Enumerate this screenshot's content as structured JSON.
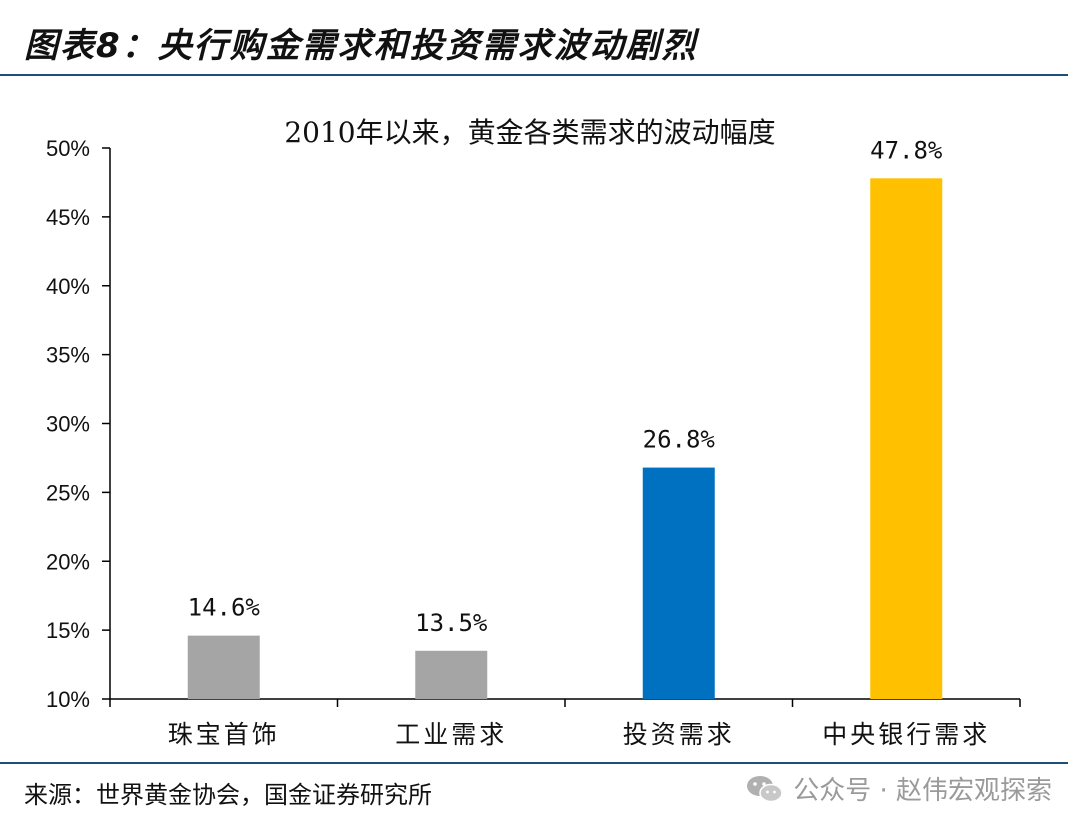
{
  "figure_title": "图表8：央行购金需求和投资需求波动剧烈",
  "source": "来源：世界黄金协会，国金证券研究所",
  "watermark": {
    "text": "公众号 · 赵伟宏观探索",
    "icon": "wechat-icon"
  },
  "colors": {
    "rule": "#1f4e79",
    "gray_bar": "#a5a5a5",
    "blue_bar": "#0070c0",
    "gold_bar": "#ffc000",
    "axis": "#000000"
  },
  "chart_data": {
    "type": "bar",
    "title": "2010年以来，黄金各类需求的波动幅度",
    "xlabel": "",
    "ylabel": "",
    "categories": [
      "珠宝首饰",
      "工业需求",
      "投资需求",
      "中央银行需求"
    ],
    "values": [
      14.6,
      13.5,
      26.8,
      47.8
    ],
    "data_labels": [
      "14.6%",
      "13.5%",
      "26.8%",
      "47.8%"
    ],
    "bar_colors": [
      "#a5a5a5",
      "#a5a5a5",
      "#0070c0",
      "#ffc000"
    ],
    "ylim": [
      10,
      50
    ],
    "yticks": [
      10,
      15,
      20,
      25,
      30,
      35,
      40,
      45,
      50
    ],
    "ytick_labels": [
      "10%",
      "15%",
      "20%",
      "25%",
      "30%",
      "35%",
      "40%",
      "45%",
      "50%"
    ],
    "grid": false,
    "legend": "none"
  }
}
